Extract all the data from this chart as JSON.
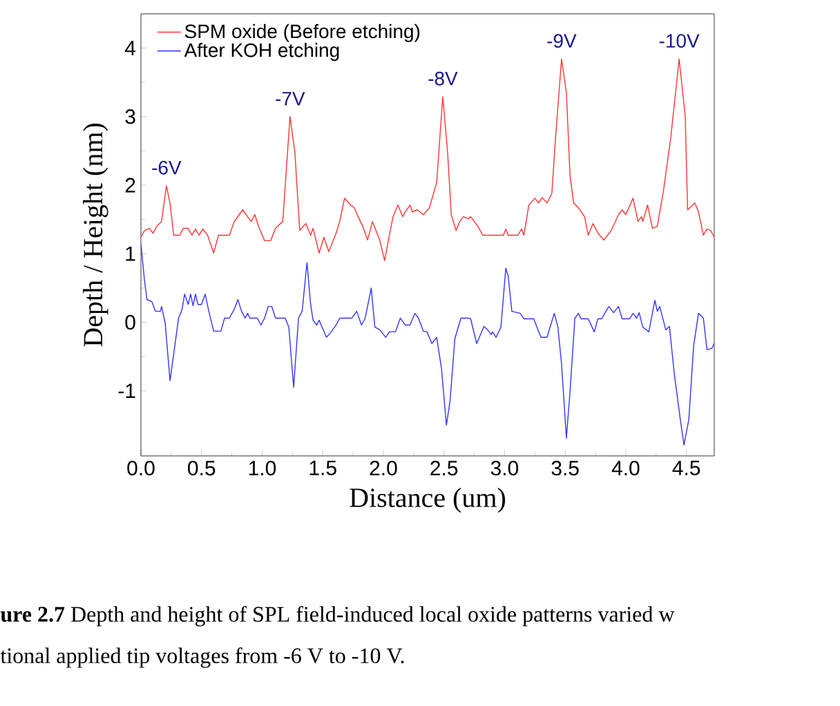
{
  "chart_data": {
    "type": "line",
    "xlabel": "Distance (um)",
    "ylabel": "Depth / Height (nm)",
    "xlim": [
      0,
      4.73
    ],
    "ylim": [
      -1.95,
      4.5
    ],
    "xticks": [
      {
        "value": 0,
        "label": "0.0"
      },
      {
        "value": 0.5,
        "label": "0.5"
      },
      {
        "value": 1,
        "label": "1.0"
      },
      {
        "value": 1.5,
        "label": "1.5"
      },
      {
        "value": 2,
        "label": "2.0"
      },
      {
        "value": 2.5,
        "label": "2.5"
      },
      {
        "value": 3,
        "label": "3.0"
      },
      {
        "value": 3.5,
        "label": "3.5"
      },
      {
        "value": 4,
        "label": "4.0"
      },
      {
        "value": 4.5,
        "label": "4.5"
      }
    ],
    "yticks": [
      -1,
      0,
      1,
      2,
      3,
      4
    ],
    "legend": "top left",
    "grid": false,
    "marker": "none",
    "line_style": "solid",
    "series": [
      {
        "name": "SPM oxide (Before etching)",
        "color": "#ff3333",
        "x": [
          0.0,
          0.03,
          0.07,
          0.1,
          0.13,
          0.17,
          0.21,
          0.24,
          0.27,
          0.32,
          0.35,
          0.39,
          0.42,
          0.45,
          0.48,
          0.51,
          0.55,
          0.6,
          0.64,
          0.73,
          0.77,
          0.84,
          0.88,
          0.91,
          0.94,
          0.97,
          1.02,
          1.07,
          1.11,
          1.17,
          1.23,
          1.27,
          1.31,
          1.36,
          1.4,
          1.42,
          1.47,
          1.51,
          1.55,
          1.61,
          1.64,
          1.68,
          1.73,
          1.76,
          1.8,
          1.83,
          1.87,
          1.91,
          1.97,
          2.01,
          2.05,
          2.08,
          2.12,
          2.16,
          2.18,
          2.22,
          2.24,
          2.28,
          2.33,
          2.38,
          2.44,
          2.49,
          2.53,
          2.56,
          2.6,
          2.63,
          2.66,
          2.7,
          2.72,
          2.78,
          2.82,
          2.99,
          3.01,
          3.03,
          3.11,
          3.14,
          3.16,
          3.2,
          3.25,
          3.28,
          3.31,
          3.35,
          3.39,
          3.42,
          3.47,
          3.51,
          3.54,
          3.57,
          3.61,
          3.66,
          3.69,
          3.73,
          3.77,
          3.82,
          3.88,
          3.94,
          3.97,
          4.0,
          4.06,
          4.1,
          4.13,
          4.14,
          4.18,
          4.22,
          4.26,
          4.31,
          4.37,
          4.44,
          4.49,
          4.51,
          4.57,
          4.6,
          4.64,
          4.67,
          4.7,
          4.73
        ],
        "values": [
          1.24,
          1.34,
          1.37,
          1.3,
          1.4,
          1.47,
          1.99,
          1.74,
          1.27,
          1.27,
          1.37,
          1.37,
          1.27,
          1.36,
          1.27,
          1.36,
          1.27,
          1.01,
          1.27,
          1.27,
          1.47,
          1.64,
          1.54,
          1.47,
          1.57,
          1.4,
          1.19,
          1.19,
          1.37,
          1.47,
          3.0,
          2.48,
          1.34,
          1.44,
          1.27,
          1.37,
          1.01,
          1.24,
          1.03,
          1.3,
          1.47,
          1.81,
          1.71,
          1.67,
          1.51,
          1.4,
          1.2,
          1.47,
          1.2,
          0.9,
          1.27,
          1.54,
          1.71,
          1.54,
          1.61,
          1.71,
          1.61,
          1.64,
          1.57,
          1.67,
          2.04,
          3.29,
          2.48,
          1.57,
          1.34,
          1.47,
          1.54,
          1.51,
          1.54,
          1.4,
          1.27,
          1.27,
          1.36,
          1.27,
          1.27,
          1.36,
          1.27,
          1.71,
          1.81,
          1.74,
          1.82,
          1.74,
          1.88,
          2.68,
          3.84,
          3.35,
          2.14,
          1.74,
          1.67,
          1.54,
          1.27,
          1.44,
          1.3,
          1.2,
          1.34,
          1.57,
          1.64,
          1.57,
          1.81,
          1.47,
          1.54,
          1.47,
          1.71,
          1.37,
          1.4,
          1.91,
          2.68,
          3.84,
          3.02,
          1.64,
          1.74,
          1.61,
          1.27,
          1.36,
          1.34,
          1.24
        ]
      },
      {
        "name": "After KOH etching",
        "color": "#3333ff",
        "x": [
          0.0,
          0.03,
          0.05,
          0.09,
          0.12,
          0.16,
          0.17,
          0.2,
          0.24,
          0.28,
          0.31,
          0.34,
          0.36,
          0.39,
          0.41,
          0.43,
          0.45,
          0.47,
          0.5,
          0.53,
          0.56,
          0.6,
          0.66,
          0.69,
          0.73,
          0.77,
          0.8,
          0.83,
          0.86,
          0.88,
          0.9,
          0.96,
          0.99,
          1.02,
          1.05,
          1.08,
          1.11,
          1.19,
          1.22,
          1.26,
          1.3,
          1.33,
          1.37,
          1.4,
          1.42,
          1.45,
          1.47,
          1.53,
          1.57,
          1.61,
          1.64,
          1.74,
          1.78,
          1.82,
          1.85,
          1.9,
          1.93,
          1.97,
          2.02,
          2.05,
          2.1,
          2.14,
          2.18,
          2.22,
          2.26,
          2.29,
          2.33,
          2.36,
          2.4,
          2.44,
          2.48,
          2.52,
          2.55,
          2.59,
          2.64,
          2.7,
          2.72,
          2.77,
          2.83,
          2.86,
          2.89,
          2.9,
          2.93,
          2.97,
          3.01,
          3.03,
          3.06,
          3.13,
          3.16,
          3.24,
          3.3,
          3.35,
          3.41,
          3.44,
          3.47,
          3.51,
          3.54,
          3.58,
          3.61,
          3.63,
          3.69,
          3.74,
          3.77,
          3.8,
          3.86,
          3.9,
          3.94,
          3.97,
          4.03,
          4.06,
          4.09,
          4.11,
          4.14,
          4.19,
          4.24,
          4.26,
          4.28,
          4.33,
          4.36,
          4.4,
          4.45,
          4.48,
          4.52,
          4.56,
          4.6,
          4.64,
          4.67,
          4.71,
          4.73
        ],
        "values": [
          1.14,
          0.6,
          0.33,
          0.3,
          0.16,
          0.16,
          0.23,
          -0.01,
          -0.85,
          -0.34,
          0.06,
          0.19,
          0.41,
          0.26,
          0.41,
          0.24,
          0.41,
          0.26,
          0.26,
          0.41,
          0.16,
          -0.13,
          -0.13,
          0.06,
          0.06,
          0.19,
          0.33,
          0.16,
          0.06,
          0.13,
          0.06,
          0.06,
          -0.04,
          0.06,
          0.23,
          0.23,
          0.06,
          0.06,
          -0.07,
          -0.95,
          0.06,
          0.16,
          0.87,
          0.26,
          0.03,
          -0.04,
          0.03,
          -0.22,
          -0.14,
          -0.04,
          0.06,
          0.06,
          0.16,
          -0.04,
          0.06,
          0.5,
          -0.07,
          -0.11,
          -0.22,
          -0.14,
          -0.14,
          0.06,
          -0.04,
          -0.04,
          0.13,
          0.06,
          -0.13,
          -0.14,
          -0.31,
          -0.22,
          -0.68,
          -1.5,
          -1.15,
          -0.24,
          0.06,
          0.06,
          0.05,
          -0.31,
          -0.06,
          -0.11,
          -0.18,
          -0.14,
          -0.22,
          -0.07,
          0.79,
          0.67,
          0.16,
          0.13,
          0.05,
          0.05,
          -0.22,
          -0.22,
          0.13,
          -0.07,
          -0.61,
          -1.69,
          -1.01,
          0.06,
          0.13,
          0.05,
          0.05,
          -0.14,
          0.05,
          0.05,
          0.23,
          0.14,
          0.23,
          0.05,
          0.05,
          0.13,
          0.06,
          0.14,
          -0.07,
          -0.14,
          0.32,
          0.16,
          0.23,
          -0.11,
          -0.06,
          -0.75,
          -1.42,
          -1.79,
          -1.42,
          -0.34,
          0.13,
          0.06,
          -0.4,
          -0.38,
          -0.31
        ]
      }
    ],
    "annotations": [
      {
        "text": "-6V",
        "x": 0.21,
        "y": 1.99
      },
      {
        "text": "-7V",
        "x": 1.23,
        "y": 3.0
      },
      {
        "text": "-8V",
        "x": 2.49,
        "y": 3.29
      },
      {
        "text": "-9V",
        "x": 3.47,
        "y": 3.84
      },
      {
        "text": "-10V",
        "x": 4.44,
        "y": 3.84
      },
      "**ure 2.7** Depth and height of SPL field-induced local oxide patterns varied w",
      "tional applied tip voltages from -6 V to -10 V."
    ]
  }
}
